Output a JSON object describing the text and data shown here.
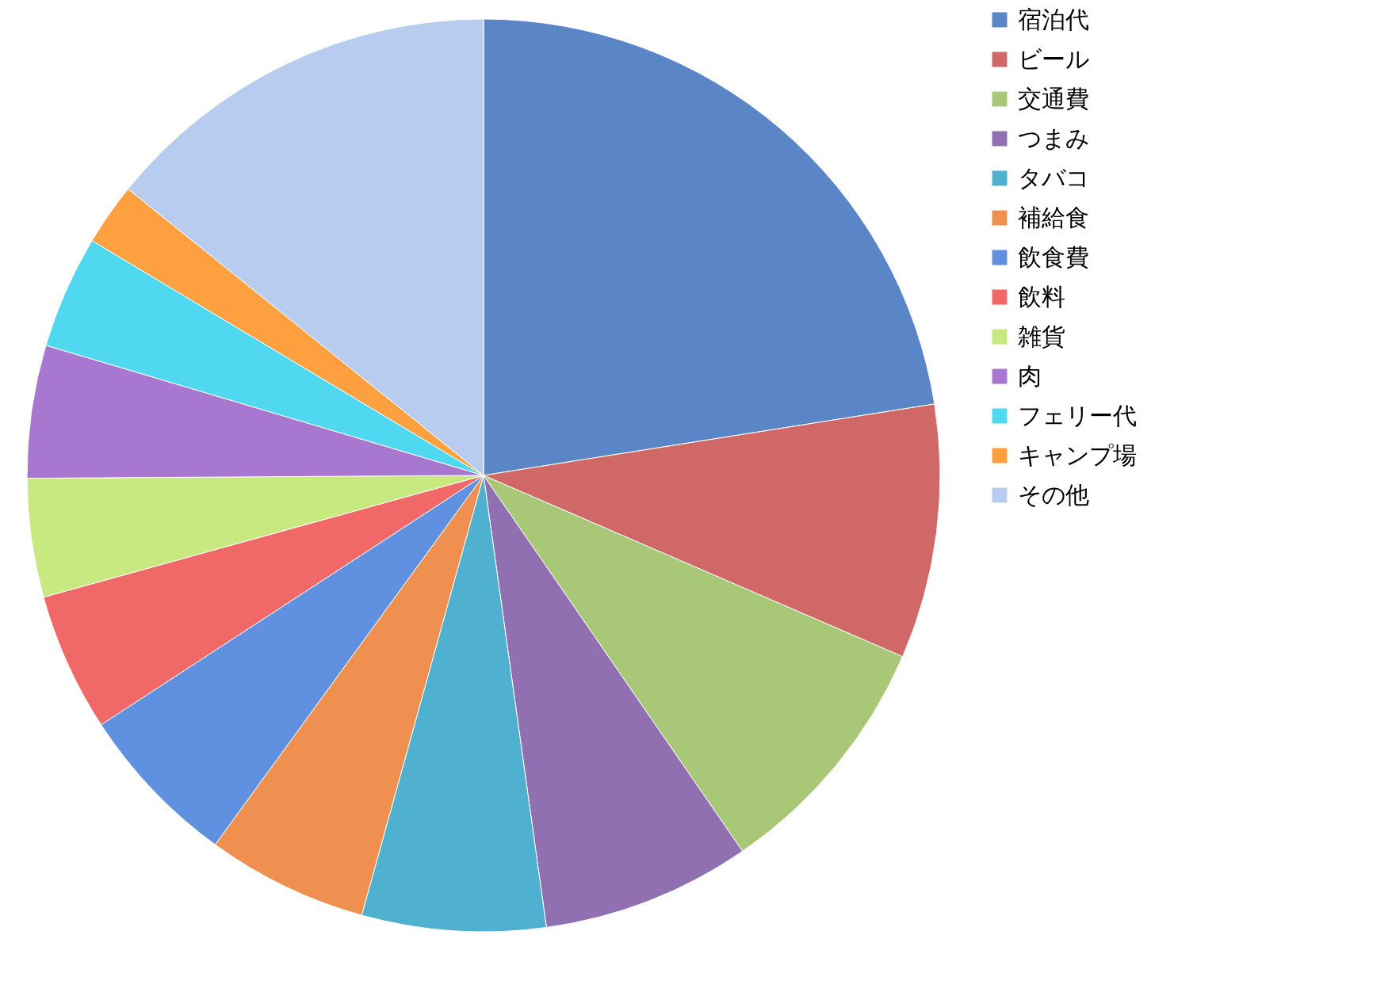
{
  "chart_data": {
    "type": "pie",
    "legend": "right",
    "categories": [
      "宿泊代",
      "ビール",
      "交通費",
      "つまみ",
      "タバコ",
      "補給食",
      "飲食費",
      "飲料",
      "雑貨",
      "肉",
      "フェリー代",
      "キャンプ場",
      "その他"
    ],
    "values": [
      22.5,
      9,
      8.9,
      7.4,
      6.5,
      5.7,
      5.8,
      4.9,
      4.2,
      4.7,
      4,
      2.2,
      14.2
    ],
    "colors": [
      "#5a86c8",
      "#d06868",
      "#a8c878",
      "#9070b0",
      "#50b0d0",
      "#f09050",
      "#6090e0",
      "#f06868",
      "#c8e880",
      "#a878d0",
      "#50d8f0",
      "#ffa040",
      "#b8ccf0"
    ]
  }
}
